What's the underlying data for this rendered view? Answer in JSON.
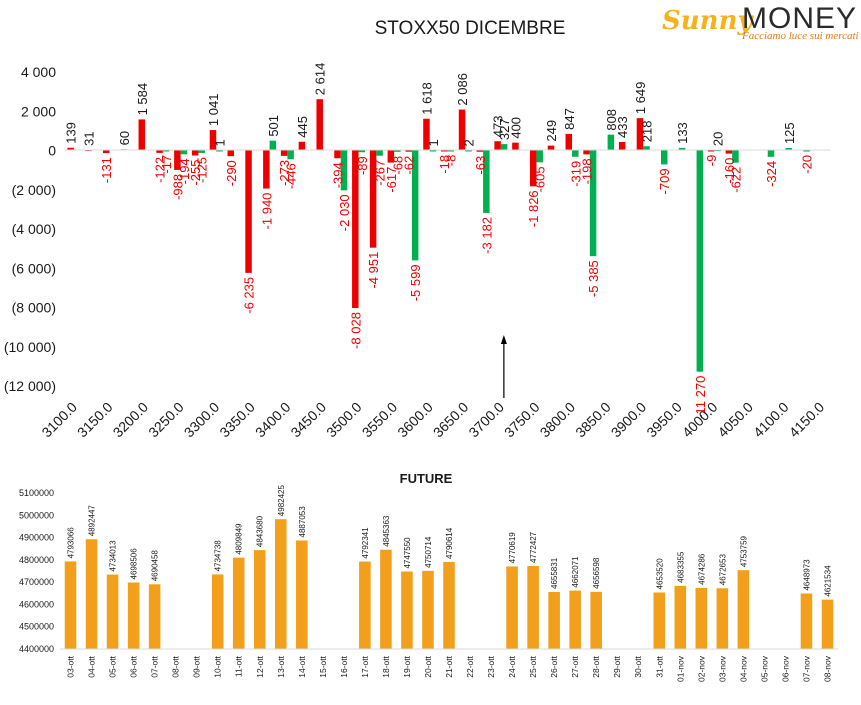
{
  "logo": {
    "brand_sunny": "Sunny",
    "brand_money": "MONEY",
    "tagline": "Facciamo luce sui mercati"
  },
  "colors": {
    "call_red": "#ee0000",
    "put_green": "#00b050",
    "future_orange": "#f2a01b",
    "text_dark": "#1a1a1a",
    "label_red": "#ee0000"
  },
  "chart_data": [
    {
      "type": "bar",
      "title": "STOXX50 DICEMBRE",
      "xlabel": "",
      "ylabel": "",
      "ylim": [
        -12000,
        4000
      ],
      "yticks": [
        4000,
        2000,
        0,
        -2000,
        -4000,
        -6000,
        -8000,
        -10000,
        -12000
      ],
      "ytick_labels": [
        "4 000",
        "2 000",
        "0",
        "(2 000)",
        "(4 000)",
        "(6 000)",
        "(8 000)",
        "(10 000)",
        "(12 000)"
      ],
      "categories": [
        "3100.0",
        "3125.0",
        "3150.0",
        "3175.0",
        "3200.0",
        "3225.0",
        "3250.0",
        "3275.0",
        "3300.0",
        "3325.0",
        "3350.0",
        "3375.0",
        "3400.0",
        "3425.0",
        "3450.0",
        "3475.0",
        "3500.0",
        "3525.0",
        "3550.0",
        "3575.0",
        "3600.0",
        "3625.0",
        "3650.0",
        "3675.0",
        "3700.0",
        "3725.0",
        "3750.0",
        "3775.0",
        "3800.0",
        "3825.0",
        "3850.0",
        "3875.0",
        "3900.0",
        "3925.0",
        "3950.0",
        "3975.0",
        "4000.0",
        "4025.0",
        "4050.0",
        "4075.0",
        "4100.0",
        "4125.0",
        "4150.0"
      ],
      "xtick_labels": [
        "3100.0",
        "3150.0",
        "3200.0",
        "3250.0",
        "3300.0",
        "3350.0",
        "3400.0",
        "3450.0",
        "3500.0",
        "3550.0",
        "3600.0",
        "3650.0",
        "3700.0",
        "3750.0",
        "3800.0",
        "3850.0",
        "3900.0",
        "3950.0",
        "4000.0",
        "4050.0",
        "4100.0",
        "4150.0"
      ],
      "series": [
        {
          "color": "#ee0000",
          "values": [
            139,
            31,
            -131,
            60,
            1584,
            -122,
            -988,
            -255,
            1041,
            -290,
            -6235,
            -1940,
            -273,
            445,
            2614,
            -394,
            -8028,
            -4951,
            -617,
            -62,
            1618,
            -18,
            2086,
            -63,
            473,
            400,
            -1826,
            249,
            847,
            -198,
            0,
            433,
            1649,
            0,
            0,
            0,
            -9,
            -160,
            0,
            0,
            0,
            0,
            0
          ],
          "labels": [
            "139",
            "31",
            "-131",
            "60",
            "1 584",
            "-122",
            "-988",
            "-255",
            "1 041",
            "-290",
            "-6 235",
            "-1 940",
            "-273",
            "445",
            "2 614",
            "-394",
            "-8 028",
            "-4 951",
            "-617",
            "-62",
            "1 618",
            "-18",
            "2 086",
            "-63",
            "473",
            "400",
            "-1 826",
            "249",
            "847",
            "-198",
            "",
            "433",
            "1 649",
            "",
            "",
            "",
            "-9",
            "-160",
            "",
            "",
            "",
            "",
            ""
          ]
        },
        {
          "color": "#00b050",
          "values": [
            0,
            0,
            0,
            0,
            0,
            -17,
            -194,
            -125,
            1,
            0,
            0,
            501,
            -446,
            0,
            0,
            -2030,
            -89,
            -267,
            -68,
            -5599,
            1,
            -8,
            2,
            -3182,
            327,
            0,
            -605,
            0,
            -319,
            -5385,
            808,
            0,
            218,
            -709,
            133,
            -11270,
            20,
            -622,
            0,
            -324,
            125,
            -20,
            0
          ],
          "labels": [
            "",
            "",
            "",
            "",
            "",
            "-17",
            "-194",
            "-125",
            "1",
            "",
            "",
            "501",
            "-446",
            "",
            "",
            "-2 030",
            "-89",
            "-267",
            "-68",
            "-5 599",
            "1",
            "-8",
            "2",
            "-3 182",
            "327",
            "",
            "-605",
            "",
            "-319",
            "-5 385",
            "808",
            "",
            "218",
            "-709",
            "133",
            "-11 270",
            "20",
            "-622",
            "",
            "-324",
            "125",
            "-20",
            ""
          ]
        }
      ],
      "annotations": [
        {
          "type": "arrow",
          "x_category": "3700.0",
          "direction": "up"
        }
      ]
    },
    {
      "type": "bar",
      "title": "FUTURE",
      "ylim": [
        4400000,
        5100000
      ],
      "yticks": [
        4400000,
        4500000,
        4600000,
        4700000,
        4800000,
        4900000,
        5000000,
        5100000
      ],
      "ytick_labels": [
        "4400000",
        "4500000",
        "4600000",
        "4700000",
        "4800000",
        "4900000",
        "5000000",
        "5100000"
      ],
      "categories": [
        "03-ott",
        "04-ott",
        "05-ott",
        "06-ott",
        "07-ott",
        "08-ott",
        "09-ott",
        "10-ott",
        "11-ott",
        "12-ott",
        "13-ott",
        "14-ott",
        "15-ott",
        "16-ott",
        "17-ott",
        "18-ott",
        "19-ott",
        "20-ott",
        "21-ott",
        "22-ott",
        "23-ott",
        "24-ott",
        "25-ott",
        "26-ott",
        "27-ott",
        "28-ott",
        "29-ott",
        "30-ott",
        "31-ott",
        "01-nov",
        "02-nov",
        "03-nov",
        "04-nov",
        "05-nov",
        "06-nov",
        "07-nov",
        "08-nov"
      ],
      "series": [
        {
          "color": "#f2a01b",
          "values": [
            4793066,
            4892447,
            4734013,
            4698506,
            4690458,
            null,
            null,
            4734738,
            4809849,
            4843680,
            4982425,
            4887053,
            null,
            null,
            4792341,
            4845363,
            4747550,
            4750714,
            4790614,
            null,
            null,
            4770619,
            4772427,
            4655831,
            4662071,
            4656598,
            null,
            null,
            4653520,
            4683355,
            4674286,
            4672653,
            4753759,
            null,
            null,
            4648973,
            4621534
          ],
          "labels": [
            "4793066",
            "4892447",
            "4734013",
            "4698506",
            "4690458",
            "",
            "",
            "4734738",
            "4809849",
            "4843680",
            "4982425",
            "4887053",
            "",
            "",
            "4792341",
            "4845363",
            "4747550",
            "4750714",
            "4790614",
            "",
            "",
            "4770619",
            "4772427",
            "4655831",
            "4662071",
            "4656598",
            "",
            "",
            "4653520",
            "4683355",
            "4674286",
            "4672653",
            "4753759",
            "",
            "",
            "4648973",
            "4621534"
          ]
        }
      ]
    }
  ]
}
